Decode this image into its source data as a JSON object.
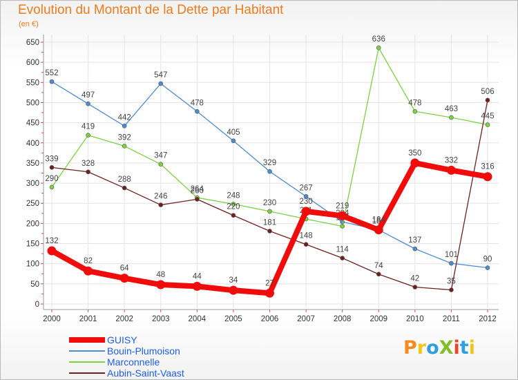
{
  "title": "Evolution du Montant de la Dette par Habitant",
  "subtitle": "(en €)",
  "logo": {
    "text": "ProXiti",
    "colors": [
      "#f58a1f",
      "#f3c51a",
      "#2e9fe0",
      "#7fbf2a",
      "#e8462d",
      "#2e9fe0",
      "#f3c51a"
    ]
  },
  "chart_data": {
    "type": "line",
    "x": [
      "2000",
      "2001",
      "2002",
      "2003",
      "2004",
      "2005",
      "2006",
      "2007",
      "2008",
      "2009",
      "2010",
      "2011",
      "2012"
    ],
    "ylim": [
      0,
      650
    ],
    "yticks": [
      0,
      50,
      100,
      150,
      200,
      250,
      300,
      350,
      400,
      450,
      500,
      550,
      600,
      650
    ],
    "grid": true,
    "legend_placement": "bottom-left",
    "series": [
      {
        "name": "Bouin-Plumoison",
        "color": "#4d8ccf",
        "values": [
          552,
          497,
          442,
          547,
          478,
          405,
          329,
          267,
          204,
          184,
          137,
          101,
          90
        ]
      },
      {
        "name": "Marconnelle",
        "color": "#7cd13f",
        "values": [
          290,
          419,
          392,
          347,
          264,
          248,
          230,
          211,
          193,
          636,
          478,
          463,
          445
        ]
      },
      {
        "name": "Aubin-Saint-Vaast",
        "color": "#6e1f1f",
        "values": [
          339,
          328,
          288,
          246,
          260,
          220,
          181,
          148,
          114,
          74,
          42,
          35,
          506
        ]
      },
      {
        "name": "GUISY",
        "color": "#f10c0c",
        "values": [
          132,
          82,
          64,
          48,
          44,
          34,
          27,
          230,
          219,
          184,
          350,
          332,
          316
        ]
      }
    ],
    "legend_order": [
      "GUISY",
      "Bouin-Plumoison",
      "Marconnelle",
      "Aubin-Saint-Vaast"
    ]
  }
}
